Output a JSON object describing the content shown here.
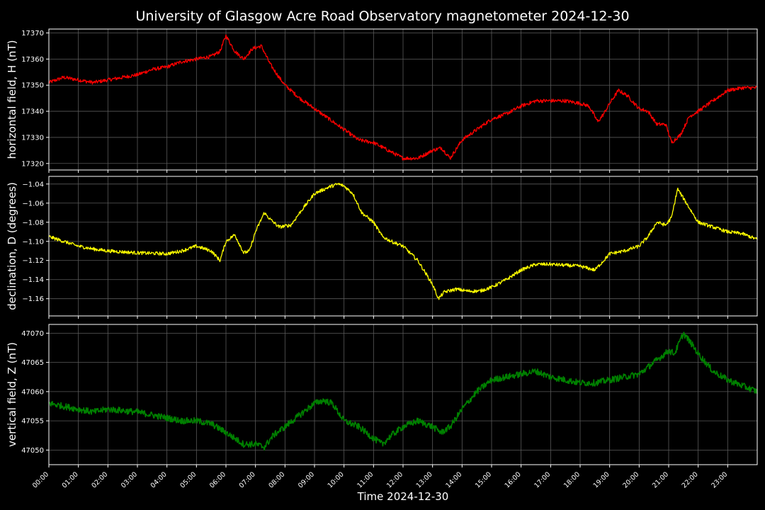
{
  "chart_data": {
    "type": "line",
    "title": "University of Glasgow Acre Road Observatory magnetometer 2024-12-30",
    "xlabel": "Time 2024-12-30",
    "xlim": [
      "00:00",
      "24:00"
    ],
    "x_ticks": [
      "00:00",
      "01:00",
      "02:00",
      "03:00",
      "04:00",
      "05:00",
      "06:00",
      "07:00",
      "08:00",
      "09:00",
      "10:00",
      "11:00",
      "12:00",
      "13:00",
      "14:00",
      "15:00",
      "16:00",
      "17:00",
      "18:00",
      "19:00",
      "20:00",
      "21:00",
      "22:00",
      "23:00"
    ],
    "grid": true,
    "panels": [
      {
        "ylabel": "horizontal field, H (nT)",
        "color": "#ff0000",
        "ylim": [
          17317.5,
          17371.5
        ],
        "y_ticks": [
          17320,
          17330,
          17340,
          17350,
          17360,
          17370
        ],
        "y_tick_labels": [
          "17320",
          "17330",
          "17340",
          "17350",
          "17360",
          "17370"
        ],
        "noise": 0.7,
        "x_hours": [
          0,
          0.5,
          1,
          1.5,
          2,
          2.5,
          3,
          3.5,
          4,
          4.5,
          5,
          5.5,
          5.8,
          6,
          6.3,
          6.6,
          6.9,
          7.2,
          7.5,
          7.8,
          8,
          8.5,
          9,
          9.5,
          10,
          10.5,
          11,
          11.5,
          12,
          12.5,
          13,
          13.3,
          13.6,
          14,
          14.5,
          15,
          15.5,
          16,
          16.5,
          17,
          17.5,
          18,
          18.3,
          18.6,
          18.8,
          19,
          19.3,
          19.6,
          20,
          20.3,
          20.6,
          20.9,
          21.1,
          21.4,
          21.7,
          22,
          22.5,
          23,
          23.5,
          24
        ],
        "y_values": [
          17351,
          17353,
          17352,
          17351,
          17352,
          17353,
          17354,
          17356,
          17357,
          17359,
          17360,
          17361,
          17363,
          17369,
          17363,
          17360,
          17364,
          17365,
          17358,
          17353,
          17350,
          17345,
          17341,
          17337,
          17333,
          17329,
          17328,
          17325,
          17322,
          17322,
          17325,
          17326,
          17322,
          17329,
          17333,
          17337,
          17339,
          17342,
          17344,
          17344,
          17344,
          17343,
          17342,
          17336,
          17339,
          17343,
          17348,
          17346,
          17341,
          17340,
          17335,
          17335,
          17328,
          17331,
          17338,
          17340,
          17344,
          17348,
          17349,
          17349
        ]
      },
      {
        "ylabel": "declination, D (degrees)",
        "color": "#ffff00",
        "ylim": [
          -1.178,
          -1.032
        ],
        "y_ticks": [
          -1.16,
          -1.14,
          -1.12,
          -1.1,
          -1.08,
          -1.06,
          -1.04
        ],
        "y_tick_labels": [
          "−1.16",
          "−1.14",
          "−1.12",
          "−1.10",
          "−1.08",
          "−1.06",
          "−1.04"
        ],
        "noise": 0.0018,
        "x_hours": [
          0,
          0.5,
          1,
          1.5,
          2,
          3,
          4,
          4.5,
          5,
          5.5,
          5.8,
          6,
          6.3,
          6.6,
          6.8,
          7,
          7.3,
          7.5,
          7.8,
          8.2,
          8.5,
          9,
          9.5,
          9.8,
          10,
          10.3,
          10.6,
          11,
          11.3,
          11.6,
          12,
          12.5,
          13,
          13.2,
          13.4,
          13.8,
          14.2,
          14.6,
          15,
          15.5,
          16,
          16.5,
          17,
          17.5,
          18,
          18.5,
          18.8,
          19,
          19.5,
          20,
          20.3,
          20.6,
          20.9,
          21.1,
          21.3,
          21.5,
          21.8,
          22,
          22.5,
          23,
          23.5,
          24
        ],
        "y_values": [
          -1.095,
          -1.1,
          -1.105,
          -1.108,
          -1.11,
          -1.112,
          -1.113,
          -1.11,
          -1.105,
          -1.11,
          -1.12,
          -1.1,
          -1.093,
          -1.112,
          -1.11,
          -1.09,
          -1.07,
          -1.077,
          -1.085,
          -1.083,
          -1.07,
          -1.05,
          -1.043,
          -1.04,
          -1.042,
          -1.05,
          -1.07,
          -1.08,
          -1.095,
          -1.1,
          -1.105,
          -1.12,
          -1.145,
          -1.16,
          -1.153,
          -1.15,
          -1.152,
          -1.152,
          -1.148,
          -1.14,
          -1.13,
          -1.124,
          -1.124,
          -1.125,
          -1.126,
          -1.13,
          -1.12,
          -1.113,
          -1.11,
          -1.105,
          -1.095,
          -1.08,
          -1.083,
          -1.075,
          -1.045,
          -1.055,
          -1.07,
          -1.08,
          -1.085,
          -1.09,
          -1.092,
          -1.098
        ]
      },
      {
        "ylabel": "vertical field, Z (nT)",
        "color": "#008000",
        "ylim": [
          47047.5,
          47071.5
        ],
        "y_ticks": [
          47050,
          47055,
          47060,
          47065,
          47070
        ],
        "y_tick_labels": [
          "47050",
          "47055",
          "47060",
          "47065",
          "47070"
        ],
        "noise": 0.55,
        "x_hours": [
          0,
          0.5,
          1,
          1.5,
          2,
          3,
          4,
          4.5,
          5,
          5.5,
          6,
          6.3,
          6.6,
          7,
          7.3,
          7.6,
          8,
          8.5,
          9,
          9.3,
          9.6,
          10,
          10.5,
          11,
          11.3,
          11.6,
          12,
          12.5,
          13,
          13.3,
          13.6,
          14,
          14.5,
          15,
          15.5,
          16,
          16.5,
          17,
          17.5,
          18,
          18.5,
          19,
          19.5,
          20,
          20.5,
          21,
          21.2,
          21.5,
          21.8,
          22,
          22.5,
          23,
          23.5,
          24
        ],
        "y_values": [
          47058,
          47057.5,
          47057,
          47056.5,
          47057,
          47056.5,
          47055.5,
          47055,
          47055,
          47054.5,
          47053,
          47052,
          47051,
          47051,
          47050.5,
          47052.5,
          47054,
          47056,
          47058,
          47058.5,
          47058,
          47055,
          47054,
          47052,
          47051,
          47052.5,
          47054,
          47055,
          47054,
          47053,
          47054,
          47057,
          47060,
          47062,
          47062.5,
          47063,
          47063.5,
          47062.5,
          47062,
          47061.5,
          47061.5,
          47062,
          47062.5,
          47063,
          47065,
          47067,
          47066.5,
          47070,
          47068,
          47066.5,
          47063.5,
          47062,
          47061,
          47060
        ]
      }
    ]
  }
}
